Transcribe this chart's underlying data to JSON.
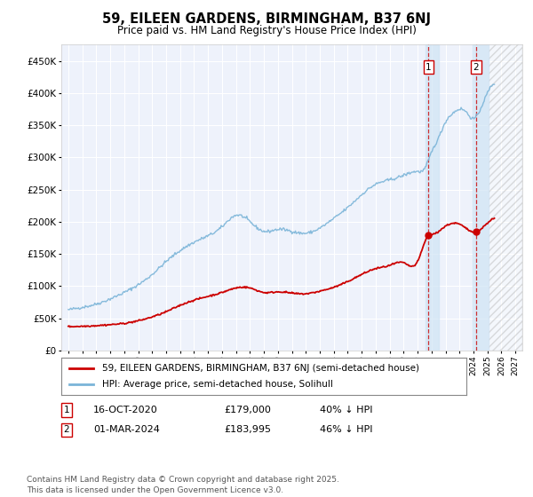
{
  "title_line1": "59, EILEEN GARDENS, BIRMINGHAM, B37 6NJ",
  "title_line2": "Price paid vs. HM Land Registry's House Price Index (HPI)",
  "background_color": "#ffffff",
  "plot_bg_color": "#eef2fb",
  "grid_color": "#ffffff",
  "hpi_color": "#7ab4d8",
  "price_color": "#cc0000",
  "ylim": [
    0,
    475000
  ],
  "yticks": [
    0,
    50000,
    100000,
    150000,
    200000,
    250000,
    300000,
    350000,
    400000,
    450000
  ],
  "ytick_labels": [
    "£0",
    "£50K",
    "£100K",
    "£150K",
    "£200K",
    "£250K",
    "£300K",
    "£350K",
    "£400K",
    "£450K"
  ],
  "xlim_start": 1994.5,
  "xlim_end": 2027.5,
  "xtick_years": [
    1995,
    1996,
    1997,
    1998,
    1999,
    2000,
    2001,
    2002,
    2003,
    2004,
    2005,
    2006,
    2007,
    2008,
    2009,
    2010,
    2011,
    2012,
    2013,
    2014,
    2015,
    2016,
    2017,
    2018,
    2019,
    2020,
    2021,
    2022,
    2023,
    2024,
    2025,
    2026,
    2027
  ],
  "sale1_date": 2020.79,
  "sale1_price": 179000,
  "sale1_label": "1",
  "sale2_date": 2024.17,
  "sale2_price": 183995,
  "sale2_label": "2",
  "annotation1_date": "16-OCT-2020",
  "annotation1_price": "£179,000",
  "annotation1_pct": "40% ↓ HPI",
  "annotation2_date": "01-MAR-2024",
  "annotation2_price": "£183,995",
  "annotation2_pct": "46% ↓ HPI",
  "legend_line1": "59, EILEEN GARDENS, BIRMINGHAM, B37 6NJ (semi-detached house)",
  "legend_line2": "HPI: Average price, semi-detached house, Solihull",
  "footnote": "Contains HM Land Registry data © Crown copyright and database right 2025.\nThis data is licensed under the Open Government Licence v3.0.",
  "shaded_start": 2020.58,
  "shaded_end": 2021.5,
  "shaded_start2": 2023.92,
  "shaded_end2": 2025.08,
  "hatch_start": 2025.08,
  "hatch_end": 2027.5
}
